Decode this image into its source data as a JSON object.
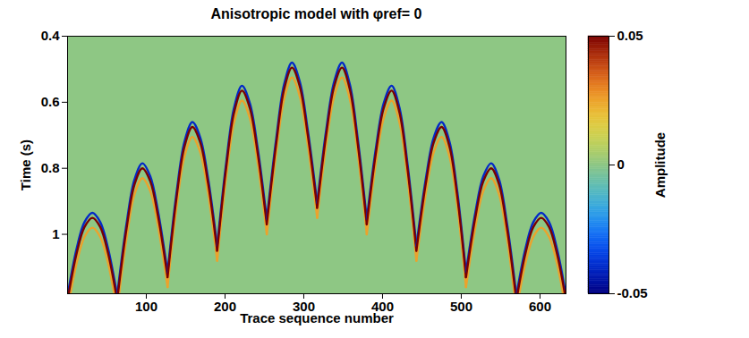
{
  "chart_data": {
    "type": "heatmap",
    "title": "Anisotropic model with φref= 0",
    "x_label": "Trace sequence number",
    "y_label": "Time (s)",
    "xlim": [
      0,
      633
    ],
    "xticks": [
      100,
      200,
      300,
      400,
      500,
      600
    ],
    "ylim": [
      0.4,
      1.18
    ],
    "yticks": [
      0.4,
      0.6,
      0.8,
      1
    ],
    "colorbar": {
      "label": "Amplitude",
      "range": [
        -0.05,
        0.05
      ],
      "ticks": [
        -0.05,
        0,
        0.05
      ]
    },
    "background_amplitude": 0,
    "events": [
      {
        "x": [
          0,
          11.5,
          21.5,
          31.5,
          41.5,
          51.5,
          63
        ],
        "wavelets": [
          {
            "amplitude": 0.05,
            "y": [
              1.2,
              1.058,
              0.978,
              0.95,
              0.978,
              1.058,
              1.2
            ]
          },
          {
            "amplitude": -0.04,
            "y": [
              1.185,
              1.043,
              0.963,
              0.935,
              0.963,
              1.043,
              1.185
            ]
          },
          {
            "amplitude": 0.025,
            "y": [
              1.23,
              1.088,
              1.008,
              0.98,
              1.008,
              1.088,
              1.23
            ]
          }
        ]
      },
      {
        "x": [
          63,
          75,
          85,
          95,
          105,
          115,
          127
        ],
        "wavelets": [
          {
            "amplitude": 0.05,
            "y": [
              1.2,
              0.981,
              0.849,
              0.8,
              0.839,
              0.947,
              1.13
            ]
          },
          {
            "amplitude": -0.04,
            "y": [
              1.185,
              0.966,
              0.834,
              0.785,
              0.824,
              0.932,
              1.115
            ]
          },
          {
            "amplitude": 0.025,
            "y": [
              1.23,
              1.011,
              0.879,
              0.83,
              0.869,
              0.977,
              1.16
            ]
          }
        ]
      },
      {
        "x": [
          127,
          138.5,
          148.5,
          158.5,
          168.5,
          178.5,
          190
        ],
        "wavelets": [
          {
            "amplitude": 0.05,
            "y": [
              1.13,
              0.887,
              0.734,
              0.675,
              0.722,
              0.846,
              1.05
            ]
          },
          {
            "amplitude": -0.04,
            "y": [
              1.115,
              0.872,
              0.719,
              0.66,
              0.707,
              0.831,
              1.035
            ]
          },
          {
            "amplitude": 0.025,
            "y": [
              1.16,
              0.917,
              0.764,
              0.705,
              0.752,
              0.876,
              1.08
            ]
          }
        ]
      },
      {
        "x": [
          190,
          201.5,
          211.5,
          221.5,
          231.5,
          241.5,
          253
        ],
        "wavelets": [
          {
            "amplitude": 0.05,
            "y": [
              1.05,
              0.797,
              0.631,
              0.565,
              0.618,
              0.755,
              0.97
            ]
          },
          {
            "amplitude": -0.04,
            "y": [
              1.035,
              0.782,
              0.616,
              0.55,
              0.603,
              0.74,
              0.955
            ]
          },
          {
            "amplitude": 0.025,
            "y": [
              1.08,
              0.827,
              0.661,
              0.595,
              0.648,
              0.785,
              1.0
            ]
          }
        ]
      },
      {
        "x": [
          253,
          265,
          275,
          285,
          295,
          305,
          317
        ],
        "wavelets": [
          {
            "amplitude": 0.05,
            "y": [
              0.97,
              0.725,
              0.561,
              0.495,
              0.553,
              0.698,
              0.92
            ]
          },
          {
            "amplitude": -0.04,
            "y": [
              0.955,
              0.71,
              0.546,
              0.48,
              0.538,
              0.683,
              0.905
            ]
          },
          {
            "amplitude": 0.025,
            "y": [
              1.0,
              0.755,
              0.591,
              0.525,
              0.583,
              0.728,
              0.95
            ]
          }
        ]
      },
      {
        "x": [
          317,
          328.5,
          338.5,
          348.5,
          358.5,
          368.5,
          380
        ],
        "wavelets": [
          {
            "amplitude": 0.05,
            "y": [
              0.92,
              0.698,
              0.553,
              0.495,
              0.561,
              0.725,
              0.97
            ]
          },
          {
            "amplitude": -0.04,
            "y": [
              0.905,
              0.683,
              0.538,
              0.48,
              0.546,
              0.71,
              0.955
            ]
          },
          {
            "amplitude": 0.025,
            "y": [
              0.95,
              0.728,
              0.583,
              0.525,
              0.591,
              0.755,
              1.0
            ]
          }
        ]
      },
      {
        "x": [
          380,
          391.5,
          401.5,
          411.5,
          421.5,
          431.5,
          443
        ],
        "wavelets": [
          {
            "amplitude": 0.05,
            "y": [
              0.97,
              0.755,
              0.618,
              0.565,
              0.631,
              0.797,
              1.05
            ]
          },
          {
            "amplitude": -0.04,
            "y": [
              0.955,
              0.74,
              0.603,
              0.55,
              0.616,
              0.782,
              1.035
            ]
          },
          {
            "amplitude": 0.025,
            "y": [
              1.0,
              0.785,
              0.648,
              0.595,
              0.661,
              0.827,
              1.08
            ]
          }
        ]
      },
      {
        "x": [
          443,
          455,
          465,
          475,
          485,
          495,
          506
        ],
        "wavelets": [
          {
            "amplitude": 0.05,
            "y": [
              1.05,
              0.846,
              0.722,
              0.675,
              0.734,
              0.887,
              1.13
            ]
          },
          {
            "amplitude": -0.04,
            "y": [
              1.035,
              0.831,
              0.707,
              0.66,
              0.719,
              0.872,
              1.115
            ]
          },
          {
            "amplitude": 0.025,
            "y": [
              1.08,
              0.876,
              0.752,
              0.705,
              0.764,
              0.917,
              1.16
            ]
          }
        ]
      },
      {
        "x": [
          506,
          518,
          528,
          538,
          548,
          558,
          570
        ],
        "wavelets": [
          {
            "amplitude": 0.05,
            "y": [
              1.13,
              0.947,
              0.839,
              0.8,
              0.849,
              0.981,
              1.2
            ]
          },
          {
            "amplitude": -0.04,
            "y": [
              1.115,
              0.932,
              0.824,
              0.785,
              0.834,
              0.966,
              1.185
            ]
          },
          {
            "amplitude": 0.025,
            "y": [
              1.16,
              0.977,
              0.869,
              0.83,
              0.879,
              1.011,
              1.23
            ]
          }
        ]
      },
      {
        "x": [
          570,
          581.5,
          591.5,
          601.5,
          611.5,
          621.5,
          633
        ],
        "wavelets": [
          {
            "amplitude": 0.05,
            "y": [
              1.2,
              1.058,
              0.978,
              0.95,
              0.978,
              1.058,
              1.2
            ]
          },
          {
            "amplitude": -0.04,
            "y": [
              1.185,
              1.043,
              0.963,
              0.935,
              0.963,
              1.043,
              1.185
            ]
          },
          {
            "amplitude": 0.025,
            "y": [
              1.23,
              1.088,
              1.008,
              0.98,
              1.008,
              1.088,
              1.23
            ]
          }
        ]
      }
    ]
  }
}
